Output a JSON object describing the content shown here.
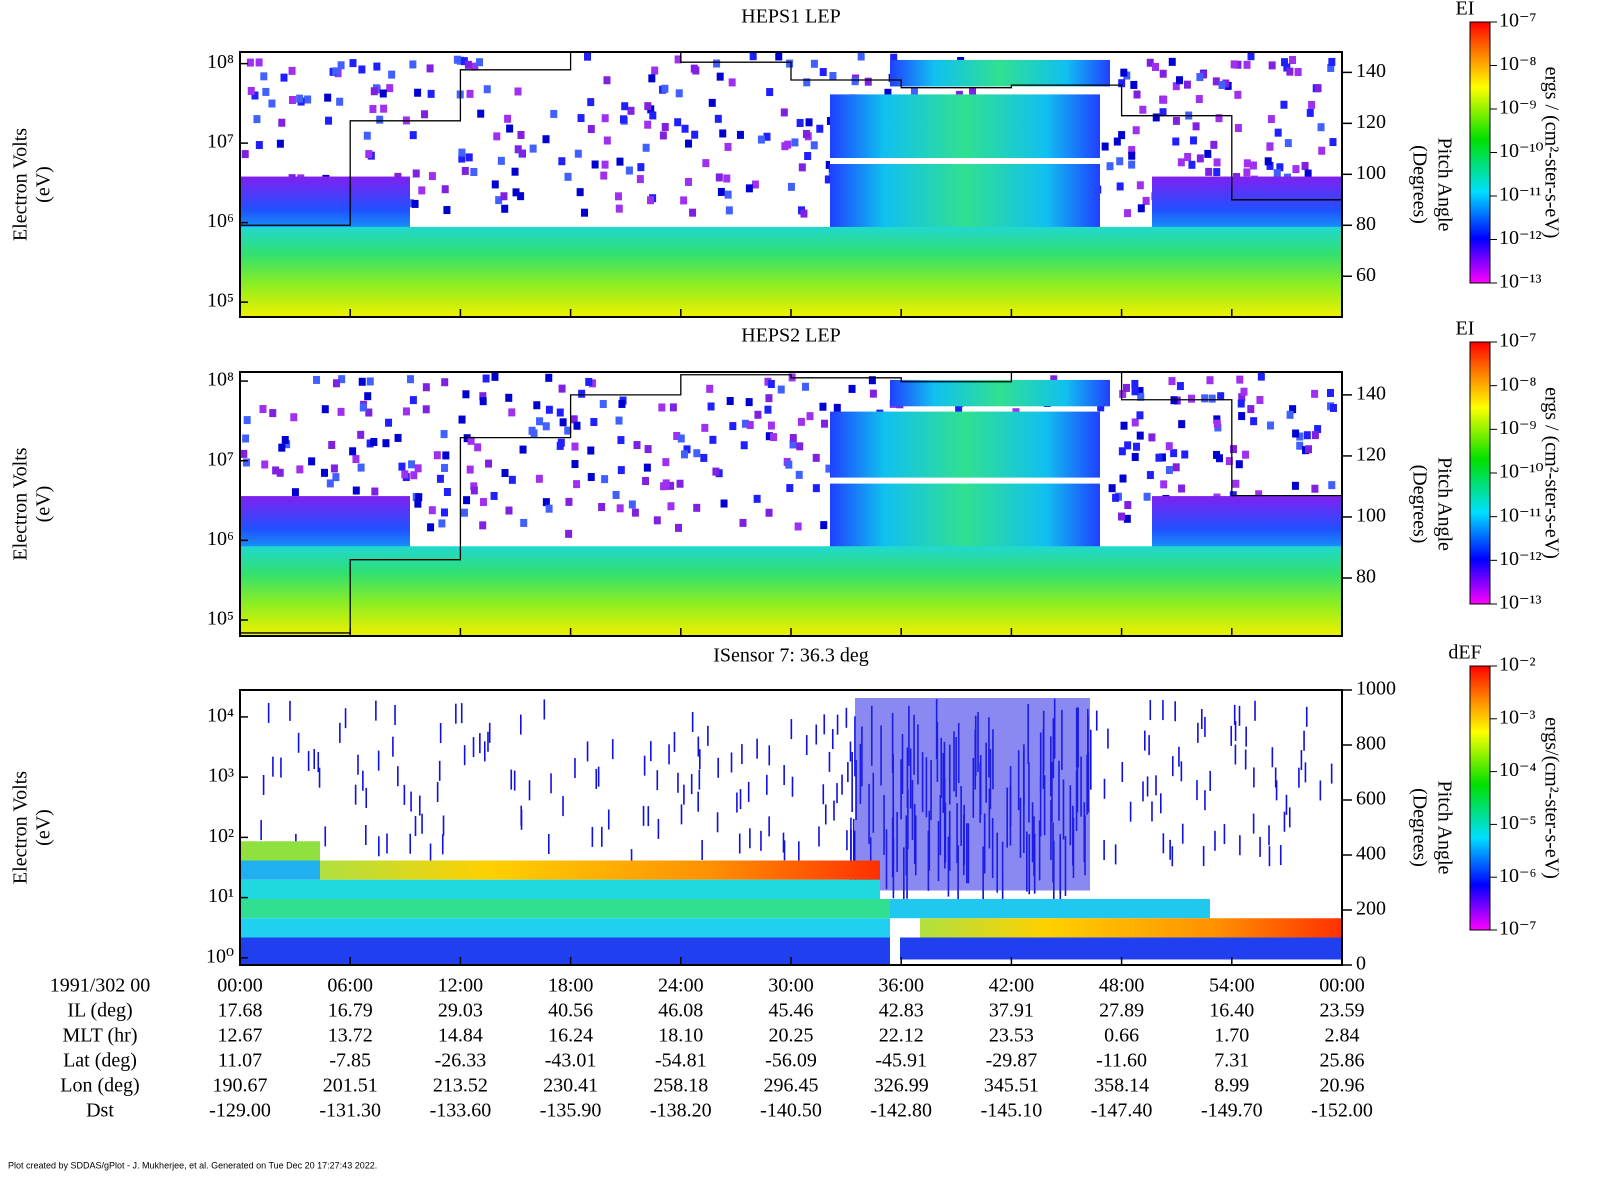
{
  "footer": "Plot created by SDDAS/gPlot - J. Mukherjee, et al.  Generated on Tue Dec 20 17:27:43 2022.",
  "time_axis": {
    "start_label": "1991/302 00",
    "xlim": [
      0,
      60
    ],
    "xticks": [
      {
        "value": 0,
        "label": "00:00"
      },
      {
        "value": 6,
        "label": "06:00"
      },
      {
        "value": 12,
        "label": "12:00"
      },
      {
        "value": 18,
        "label": "18:00"
      },
      {
        "value": 24,
        "label": "24:00"
      },
      {
        "value": 30,
        "label": "30:00"
      },
      {
        "value": 36,
        "label": "36:00"
      },
      {
        "value": 42,
        "label": "42:00"
      },
      {
        "value": 48,
        "label": "48:00"
      },
      {
        "value": 54,
        "label": "54:00"
      },
      {
        "value": 60,
        "label": "00:00"
      }
    ]
  },
  "ephemeris": [
    {
      "label": "IL (deg)",
      "values": [
        "17.68",
        "16.79",
        "29.03",
        "40.56",
        "46.08",
        "45.46",
        "42.83",
        "37.91",
        "27.89",
        "16.40",
        "23.59"
      ]
    },
    {
      "label": "MLT (hr)",
      "values": [
        "12.67",
        "13.72",
        "14.84",
        "16.24",
        "18.10",
        "20.25",
        "22.12",
        "23.53",
        "0.66",
        "1.70",
        "2.84"
      ]
    },
    {
      "label": "Lat (deg)",
      "values": [
        "11.07",
        "-7.85",
        "-26.33",
        "-43.01",
        "-54.81",
        "-56.09",
        "-45.91",
        "-29.87",
        "-11.60",
        "7.31",
        "25.86"
      ]
    },
    {
      "label": "Lon (deg)",
      "values": [
        "190.67",
        "201.51",
        "213.52",
        "230.41",
        "258.18",
        "296.45",
        "326.99",
        "345.51",
        "358.14",
        "8.99",
        "20.96"
      ]
    },
    {
      "label": "Dst",
      "values": [
        "-129.00",
        "-131.30",
        "-133.60",
        "-135.90",
        "-138.20",
        "-140.50",
        "-142.80",
        "-145.10",
        "-147.40",
        "-149.70",
        "-152.00"
      ]
    }
  ],
  "chart_data": [
    {
      "type": "spectrogram",
      "title": "HEPS1 LEP",
      "ylabel": "Electron Volts",
      "ylabel_unit": "(eV)",
      "y2label": "Pitch Angle",
      "y2label_unit": "(Degrees)",
      "log_y": true,
      "ylim": [
        65000,
        140000000
      ],
      "yticks": [
        {
          "value": 100000,
          "label": "10⁵"
        },
        {
          "value": 1000000,
          "label": "10⁶"
        },
        {
          "value": 10000000,
          "label": "10⁷"
        },
        {
          "value": 100000000,
          "label": "10⁸"
        }
      ],
      "y2lim": [
        44,
        148
      ],
      "y2ticks": [
        60,
        80,
        100,
        120,
        140
      ],
      "pitch_angle": {
        "axis": "y2",
        "color": "#000000",
        "x": [
          0,
          6,
          12,
          18,
          24,
          30,
          36,
          42,
          48,
          54,
          60
        ],
        "values": [
          80,
          121,
          141,
          148,
          144,
          137,
          134,
          135,
          123,
          90,
          45
        ]
      },
      "colorbar": {
        "title": "EI",
        "label": "ergs / (cm²-ster-s-eV)",
        "log": true,
        "clim": [
          1e-13,
          1e-07
        ],
        "ticks": [
          {
            "value": 1e-07,
            "label": "10⁻⁷"
          },
          {
            "value": 1e-08,
            "label": "10⁻⁸"
          },
          {
            "value": 1e-09,
            "label": "10⁻⁹"
          },
          {
            "value": 1e-10,
            "label": "10⁻¹⁰"
          },
          {
            "value": 1e-11,
            "label": "10⁻¹¹"
          },
          {
            "value": 1e-12,
            "label": "10⁻¹²"
          },
          {
            "value": 1e-13,
            "label": "10⁻¹³"
          }
        ]
      }
    },
    {
      "type": "spectrogram",
      "title": "HEPS2 LEP",
      "ylabel": "Electron Volts",
      "ylabel_unit": "(eV)",
      "y2label": "Pitch Angle",
      "y2label_unit": "(Degrees)",
      "log_y": true,
      "ylim": [
        63000,
        130000000
      ],
      "yticks": [
        {
          "value": 100000,
          "label": "10⁵"
        },
        {
          "value": 1000000,
          "label": "10⁶"
        },
        {
          "value": 10000000,
          "label": "10⁷"
        },
        {
          "value": 100000000,
          "label": "10⁸"
        }
      ],
      "y2lim": [
        61,
        147.5
      ],
      "y2ticks": [
        80,
        100,
        120,
        140
      ],
      "pitch_angle": {
        "axis": "y2",
        "color": "#000000",
        "x": [
          0,
          6,
          12,
          18,
          24,
          30,
          36,
          42,
          48,
          54,
          60
        ],
        "values": [
          62,
          86,
          126,
          140,
          146.6,
          145.6,
          144.3,
          147.5,
          138.4,
          107,
          62
        ]
      },
      "colorbar": {
        "title": "EI",
        "label": "ergs / (cm²-ster-s-eV)",
        "log": true,
        "clim": [
          1e-13,
          1e-07
        ],
        "ticks": [
          {
            "value": 1e-07,
            "label": "10⁻⁷"
          },
          {
            "value": 1e-08,
            "label": "10⁻⁸"
          },
          {
            "value": 1e-09,
            "label": "10⁻⁹"
          },
          {
            "value": 1e-10,
            "label": "10⁻¹⁰"
          },
          {
            "value": 1e-11,
            "label": "10⁻¹¹"
          },
          {
            "value": 1e-12,
            "label": "10⁻¹²"
          },
          {
            "value": 1e-13,
            "label": "10⁻¹³"
          }
        ]
      }
    },
    {
      "type": "spectrogram",
      "title": "ISensor 7: 36.3 deg",
      "ylabel": "Electron Volts",
      "ylabel_unit": "(eV)",
      "y2label": "Pitch Angle",
      "y2label_unit": "(Degrees)",
      "log_y": true,
      "ylim": [
        0.76,
        28000
      ],
      "yticks": [
        {
          "value": 1,
          "label": "10⁰"
        },
        {
          "value": 10,
          "label": "10¹"
        },
        {
          "value": 100,
          "label": "10²"
        },
        {
          "value": 1000,
          "label": "10³"
        },
        {
          "value": 10000,
          "label": "10⁴"
        }
      ],
      "y2lim": [
        0,
        1000
      ],
      "y2ticks": [
        0,
        200,
        400,
        600,
        800,
        1000
      ],
      "colorbar": {
        "title": "dEF",
        "label": "ergs/(cm²-ster-s-eV)",
        "log": true,
        "clim": [
          1e-07,
          0.01
        ],
        "ticks": [
          {
            "value": 0.01,
            "label": "10⁻²"
          },
          {
            "value": 0.001,
            "label": "10⁻³"
          },
          {
            "value": 0.0001,
            "label": "10⁻⁴"
          },
          {
            "value": 1e-05,
            "label": "10⁻⁵"
          },
          {
            "value": 1e-06,
            "label": "10⁻⁶"
          },
          {
            "value": 1e-07,
            "label": "10⁻⁷"
          }
        ]
      }
    }
  ]
}
